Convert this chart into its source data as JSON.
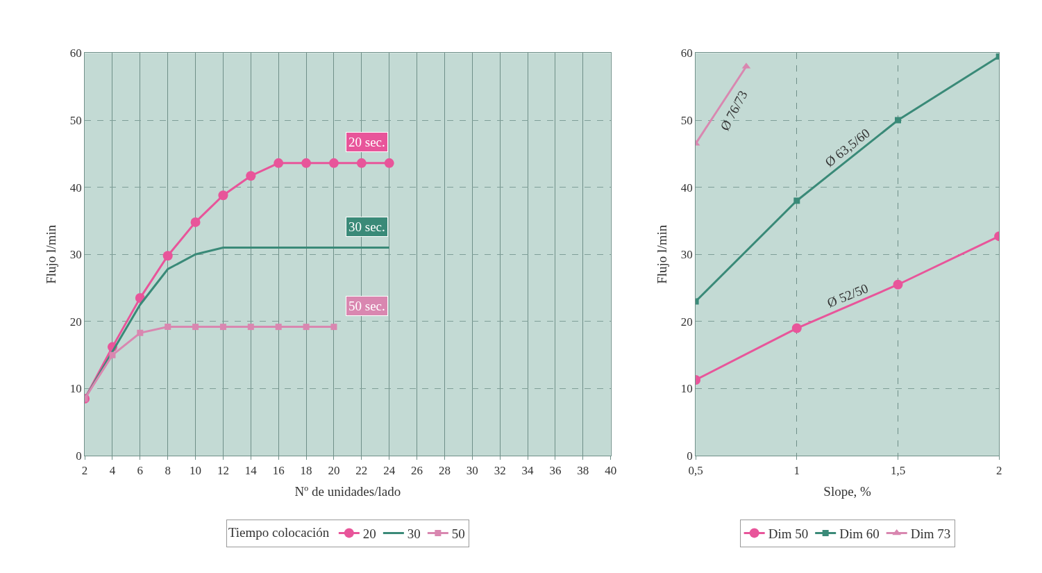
{
  "chart_data": [
    {
      "type": "line",
      "xlabel": "Nº de unidades/lado",
      "ylabel": "Flujo l/min",
      "legend_title": "Tiempo colocación",
      "legend": "bottom",
      "grid": true,
      "xlim": [
        2,
        40
      ],
      "ylim": [
        0,
        60
      ],
      "xticks": [
        2,
        4,
        6,
        8,
        10,
        12,
        14,
        16,
        18,
        20,
        22,
        24,
        26,
        28,
        30,
        32,
        34,
        36,
        38,
        40
      ],
      "yticks": [
        0,
        10,
        20,
        30,
        40,
        50,
        60
      ],
      "series": [
        {
          "name": "20",
          "color": "#e8559a",
          "marker": "circle",
          "x": [
            2,
            4,
            6,
            8,
            10,
            12,
            14,
            16,
            18,
            20,
            22,
            24
          ],
          "values": [
            8.5,
            16.2,
            23.5,
            29.8,
            34.8,
            38.8,
            41.7,
            43.6,
            43.6,
            43.6,
            43.6,
            43.6
          ]
        },
        {
          "name": "30",
          "color": "#3a8a78",
          "marker": "none",
          "x": [
            2,
            4,
            6,
            8,
            10,
            12,
            14,
            24
          ],
          "values": [
            8.5,
            15.5,
            22.5,
            27.8,
            30,
            31,
            31,
            31
          ]
        },
        {
          "name": "50",
          "color": "#d987b0",
          "marker": "square",
          "x": [
            2,
            4,
            6,
            8,
            10,
            12,
            14,
            16,
            18,
            20
          ],
          "values": [
            8.5,
            15,
            18.3,
            19.2,
            19.2,
            19.2,
            19.2,
            19.2,
            19.2,
            19.2
          ]
        }
      ],
      "annotations": [
        "20 sec.",
        "30 sec.",
        "50 sec."
      ]
    },
    {
      "type": "line",
      "xlabel": "Slope, %",
      "ylabel": "Flujo l/min",
      "legend": "bottom",
      "grid": true,
      "xlim": [
        0.5,
        2
      ],
      "ylim": [
        0,
        60
      ],
      "xticks": [
        {
          "value": 0.5,
          "label": "0,5"
        },
        1,
        {
          "value": 1.5,
          "label": "1,5"
        },
        2
      ],
      "yticks": [
        0,
        10,
        20,
        30,
        40,
        50,
        60
      ],
      "series": [
        {
          "name": "Dim 50",
          "color": "#e8559a",
          "marker": "circle",
          "x": [
            0.5,
            1,
            1.5,
            2
          ],
          "values": [
            11.3,
            19,
            25.5,
            32.7
          ]
        },
        {
          "name": "Dim 60",
          "color": "#3a8a78",
          "marker": "square",
          "x": [
            0.5,
            1,
            1.5,
            2
          ],
          "values": [
            23,
            38,
            50,
            59.5
          ]
        },
        {
          "name": "Dim 73",
          "color": "#d987b0",
          "marker": "triangle",
          "x": [
            0.5,
            0.75
          ],
          "values": [
            46.5,
            58
          ]
        }
      ],
      "annotations": [
        "Ø 52/50",
        "Ø 63,5/60",
        "Ø 76/73"
      ]
    }
  ]
}
